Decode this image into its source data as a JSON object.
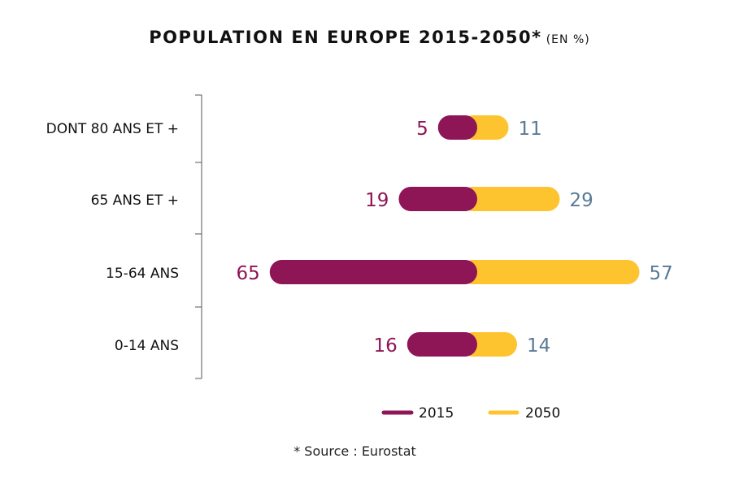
{
  "chart_data": {
    "type": "bar",
    "orientation": "horizontal-diverging",
    "title": "POPULATION EN EUROPE 2015-2050*",
    "subtitle": "(EN %)",
    "categories": [
      "DONT 80 ANS ET +",
      "65 ANS ET +",
      "15-64 ANS",
      "0-14 ANS"
    ],
    "series": [
      {
        "name": "2015",
        "values": [
          5,
          19,
          65,
          16
        ],
        "color": "#8e1656"
      },
      {
        "name": "2050",
        "values": [
          11,
          29,
          57,
          14
        ],
        "color": "#fdc430"
      }
    ],
    "label_colors": {
      "2015": "#8e1656",
      "2050": "#5b7a96"
    },
    "legend_placement": "bottom",
    "grid": false,
    "footnote": "* Source : Eurostat"
  }
}
